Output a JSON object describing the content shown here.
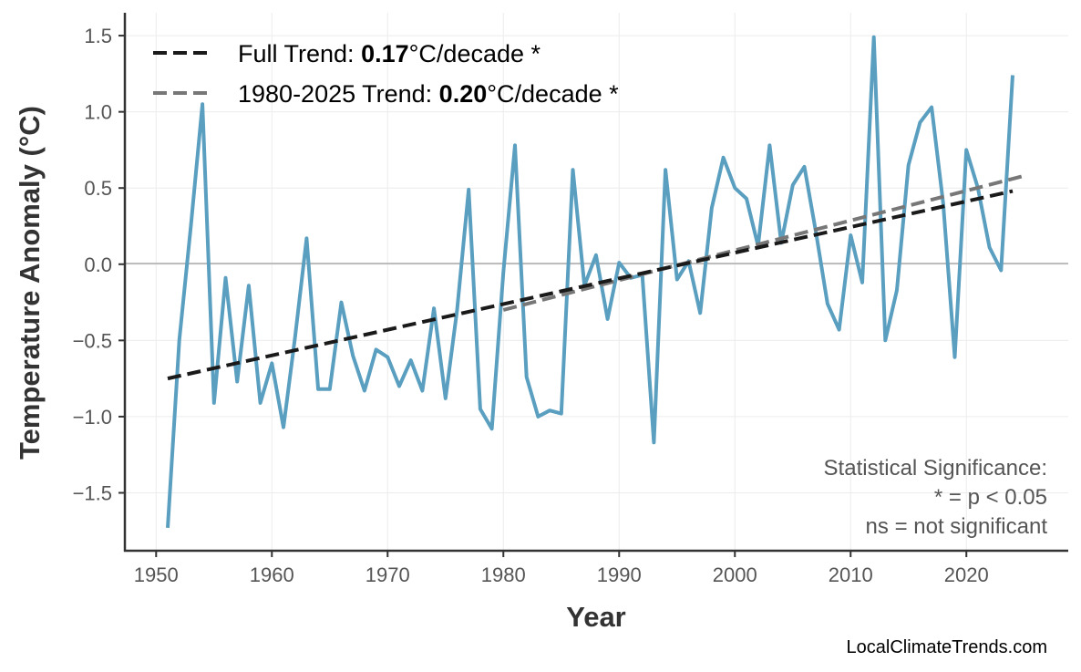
{
  "chart_data": {
    "type": "line",
    "title": "",
    "xlabel": "Year",
    "ylabel": "Temperature Anomaly (°C)",
    "xlim": [
      1947.3,
      2028.8
    ],
    "ylim": [
      -1.88,
      1.65
    ],
    "grid": true,
    "x_ticks": [
      "1950",
      "1960",
      "1970",
      "1980",
      "1990",
      "2000",
      "2010",
      "2020"
    ],
    "y_ticks": [
      "1.5",
      "1.0",
      "0.5",
      "0.0",
      "−0.5",
      "−1.0",
      "−1.5"
    ],
    "line_color": "#5a9fc0",
    "series": [
      {
        "x": [
          1951,
          1952,
          1953,
          1954,
          1955,
          1956,
          1957,
          1958,
          1959,
          1960,
          1961,
          1962,
          1963,
          1964,
          1965,
          1966,
          1967,
          1968,
          1969,
          1970,
          1971,
          1972,
          1973,
          1974,
          1975,
          1976,
          1977,
          1978,
          1979,
          1980,
          1981,
          1982,
          1983,
          1984,
          1985,
          1986,
          1987,
          1988,
          1989,
          1990,
          1991,
          1992,
          1993,
          1994,
          1995,
          1996,
          1997,
          1998,
          1999,
          2000,
          2001,
          2002,
          2003,
          2004,
          2005,
          2006,
          2007,
          2008,
          2009,
          2010,
          2011,
          2012,
          2013,
          2014,
          2015,
          2016,
          2017,
          2018,
          2019,
          2020,
          2021,
          2022,
          2023,
          2024
        ],
        "values": [
          -1.73,
          -0.5,
          0.25,
          1.05,
          -0.91,
          -0.09,
          -0.77,
          -0.14,
          -0.91,
          -0.65,
          -1.07,
          -0.48,
          0.17,
          -0.82,
          -0.82,
          -0.25,
          -0.6,
          -0.83,
          -0.56,
          -0.61,
          -0.8,
          -0.63,
          -0.83,
          -0.29,
          -0.88,
          -0.3,
          0.49,
          -0.95,
          -1.08,
          -0.05,
          0.78,
          -0.74,
          -1.0,
          -0.96,
          -0.98,
          0.62,
          -0.14,
          0.06,
          -0.36,
          0.01,
          -0.09,
          -0.07,
          -1.17,
          0.62,
          -0.1,
          0.02,
          -0.32,
          0.37,
          0.7,
          0.5,
          0.43,
          0.12,
          0.78,
          0.14,
          0.52,
          0.64,
          0.21,
          -0.26,
          -0.43,
          0.19,
          -0.12,
          1.49,
          -0.5,
          -0.17,
          0.65,
          0.93,
          1.03,
          0.4,
          -0.61,
          0.75,
          0.5,
          0.11,
          -0.04,
          1.24
        ]
      }
    ],
    "trends": [
      {
        "x": [
          1951,
          2024
        ],
        "y": [
          -0.75,
          0.48
        ],
        "color": "#1a1a1a",
        "label_prefix": "Full Trend: ",
        "label_value": "0.17",
        "label_suffix": "°C/decade *"
      },
      {
        "x": [
          1980,
          2025
        ],
        "y": [
          -0.3,
          0.58
        ],
        "color": "#777777",
        "label_prefix": "1980-2025 Trend: ",
        "label_value": "0.20",
        "label_suffix": "°C/decade *"
      }
    ],
    "legend_position": "top-left",
    "annotation": [
      "Statistical Significance:",
      "* = p < 0.05",
      "ns = not significant"
    ]
  },
  "watermark": "LocalClimateTrends.com"
}
